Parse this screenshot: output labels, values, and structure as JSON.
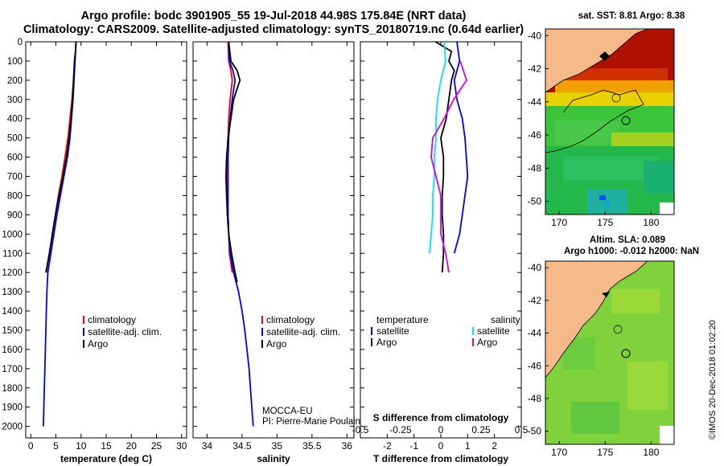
{
  "header": {
    "line1": "Argo profile: bodc 3901905_55 19-Jul-2018 44.98S 175.84E (NRT data)",
    "line2": "Climatology: CARS2009. Satellite-adjusted climatology: synTS_20180719.nc (0.64d earlier)"
  },
  "colors": {
    "climatology": "#ff0000",
    "satellite": "#0000ff",
    "argo": "#000000",
    "salinity_sat": "#00e5ff",
    "salinity_argo": "#e000e0",
    "land": "#f5b98a",
    "sst_warm": "#b01000",
    "sla_bg": "#7fd23c"
  },
  "chart_data": [
    {
      "id": "temperature-panel",
      "type": "line",
      "xlabel": "temperature (deg C)",
      "ylabel": "depth",
      "xlim": [
        -1,
        31
      ],
      "ylim": [
        2060,
        0
      ],
      "xticks": [
        "0",
        "5",
        "10",
        "15",
        "20",
        "25",
        "30"
      ],
      "yticks": [
        "0",
        "100",
        "200",
        "300",
        "400",
        "500",
        "600",
        "700",
        "800",
        "900",
        "1000",
        "1100",
        "1200",
        "1300",
        "1400",
        "1500",
        "1600",
        "1700",
        "1800",
        "1900",
        "2000"
      ],
      "legend": [
        "climatology",
        "satellite-adj. clim.",
        "Argo"
      ],
      "series": [
        {
          "name": "climatology",
          "color": "#ff0000",
          "depth": [
            0,
            50,
            100,
            150,
            200,
            300,
            400,
            500,
            600,
            700,
            800,
            900,
            1000,
            1100,
            1200
          ],
          "values": [
            9.0,
            8.9,
            8.7,
            8.6,
            8.5,
            8.2,
            7.8,
            7.4,
            6.8,
            6.2,
            5.5,
            4.9,
            4.3,
            3.7,
            3.1
          ]
        },
        {
          "name": "satellite-adj. clim.",
          "color": "#0000ff",
          "depth": [
            0,
            50,
            100,
            200,
            300,
            400,
            500,
            600,
            700,
            800,
            900,
            1000,
            1100,
            1200,
            1300,
            1400,
            1500,
            1600,
            1700,
            1800,
            1900,
            2000
          ],
          "values": [
            9.0,
            8.9,
            8.8,
            8.6,
            8.4,
            8.1,
            7.8,
            7.3,
            6.6,
            5.9,
            5.2,
            4.6,
            4.0,
            3.4,
            3.2,
            3.1,
            3.0,
            2.9,
            2.8,
            2.7,
            2.6,
            2.5
          ]
        },
        {
          "name": "Argo",
          "color": "#000000",
          "depth": [
            0,
            50,
            100,
            150,
            200,
            300,
            400,
            500,
            600,
            700,
            800,
            900,
            1000,
            1100,
            1200
          ],
          "values": [
            9.0,
            8.9,
            8.7,
            8.6,
            8.5,
            8.3,
            8.0,
            7.6,
            7.1,
            6.4,
            5.6,
            4.9,
            4.3,
            3.7,
            3.0
          ]
        }
      ]
    },
    {
      "id": "salinity-panel",
      "type": "line",
      "xlabel": "salinity",
      "xlim": [
        33.8,
        36.1
      ],
      "ylim": [
        2060,
        0
      ],
      "xticks": [
        "34",
        "34.5",
        "35",
        "35.5",
        "36"
      ],
      "legend": [
        "climatology",
        "satellite-adj. clim.",
        "Argo"
      ],
      "annotation": [
        "MOCCA-EU",
        "PI: Pierre-Marie Poulain"
      ],
      "series": [
        {
          "name": "climatology",
          "color": "#ff0000",
          "depth": [
            0,
            100,
            150,
            200,
            300,
            400,
            500,
            600,
            700,
            800,
            900,
            1000,
            1100,
            1200
          ],
          "values": [
            34.3,
            34.31,
            34.34,
            34.36,
            34.33,
            34.31,
            34.3,
            34.29,
            34.29,
            34.29,
            34.3,
            34.31,
            34.32,
            34.36
          ]
        },
        {
          "name": "satellite-adj. clim.",
          "color": "#0000ff",
          "depth": [
            0,
            100,
            150,
            200,
            300,
            400,
            500,
            600,
            700,
            800,
            900,
            1000,
            1100,
            1200,
            1300,
            1400,
            1500,
            1600,
            1700,
            1800,
            1900,
            2000
          ],
          "values": [
            34.31,
            34.32,
            34.37,
            34.4,
            34.36,
            34.33,
            34.31,
            34.3,
            34.3,
            34.3,
            34.3,
            34.31,
            34.33,
            34.38,
            34.45,
            34.5,
            34.54,
            34.57,
            34.6,
            34.62,
            34.64,
            34.66
          ]
        },
        {
          "name": "Argo",
          "color": "#000000",
          "depth": [
            0,
            100,
            150,
            200,
            300,
            400,
            500,
            600,
            700,
            800,
            900,
            1000,
            1100,
            1200,
            1250
          ],
          "values": [
            34.31,
            34.34,
            34.43,
            34.47,
            34.38,
            34.34,
            34.3,
            34.28,
            34.27,
            34.28,
            34.29,
            34.31,
            34.35,
            34.4,
            34.43
          ]
        }
      ]
    },
    {
      "id": "difference-panel",
      "type": "line",
      "xlabel": "T difference from climatology",
      "title2": "S difference from climatology",
      "xlim": [
        -3,
        3
      ],
      "ylim": [
        2060,
        0
      ],
      "xticks": [
        "-2",
        "-1",
        "0",
        "1",
        "2"
      ],
      "sticks": [
        "-0.5",
        "-0.25",
        "0",
        "0.25",
        "0.5"
      ],
      "legend_left_title": "temperature",
      "legend_right_title": "salinity",
      "legend_left": [
        "satellite",
        "Argo"
      ],
      "legend_right": [
        "satellite",
        "Argo"
      ],
      "series": [
        {
          "name": "T satellite",
          "color": "#0000ff",
          "depth": [
            0,
            100,
            200,
            300,
            400,
            500,
            600,
            700,
            800,
            900,
            1000,
            1100
          ],
          "values": [
            0.6,
            0.7,
            0.5,
            0.6,
            0.8,
            0.9,
            0.95,
            1.0,
            0.9,
            0.8,
            0.7,
            0.5
          ]
        },
        {
          "name": "T Argo",
          "color": "#000000",
          "depth": [
            0,
            50,
            100,
            150,
            200,
            300,
            400,
            500,
            600,
            700,
            800,
            900,
            1000,
            1100,
            1200
          ],
          "values": [
            -0.2,
            0.4,
            0.3,
            0.5,
            0.4,
            0.3,
            0.2,
            0.0,
            0.1,
            0.1,
            0.05,
            0.05,
            0.1,
            0.1,
            0.05
          ]
        },
        {
          "name": "S satellite",
          "color": "#00e5ff",
          "depth": [
            0,
            100,
            200,
            300,
            400,
            500,
            600,
            700,
            800,
            900,
            1000,
            1100
          ],
          "values": [
            0.02,
            0.03,
            0.0,
            -0.02,
            -0.03,
            -0.03,
            -0.04,
            -0.04,
            -0.05,
            -0.05,
            -0.06,
            -0.07
          ]
        },
        {
          "name": "S Argo",
          "color": "#e000e0",
          "depth": [
            100,
            200,
            300,
            400,
            500,
            600,
            700,
            800,
            900,
            1000,
            1100,
            1200
          ],
          "values": [
            0.12,
            0.16,
            0.08,
            0.02,
            -0.05,
            -0.06,
            -0.03,
            0.0,
            0.0,
            0.0,
            0.03,
            0.05
          ]
        }
      ]
    }
  ],
  "maps": {
    "sst": {
      "label": "sat. SST: 8.81 Argo: 8.38",
      "xticks": [
        "170",
        "175",
        "180"
      ],
      "yticks": [
        "-40",
        "-42",
        "-44",
        "-46",
        "-48",
        "-50"
      ]
    },
    "sla": {
      "label1": "Altim. SLA: 0.089",
      "label2": "Argo h1000: -0.012 h2000: NaN",
      "xticks": [
        "170",
        "175",
        "180"
      ],
      "yticks": [
        "-40",
        "-42",
        "-44",
        "-46",
        "-48",
        "-50"
      ]
    }
  },
  "footer": {
    "stamp": "©IMOS 20-Dec-2018 01:02:20"
  }
}
